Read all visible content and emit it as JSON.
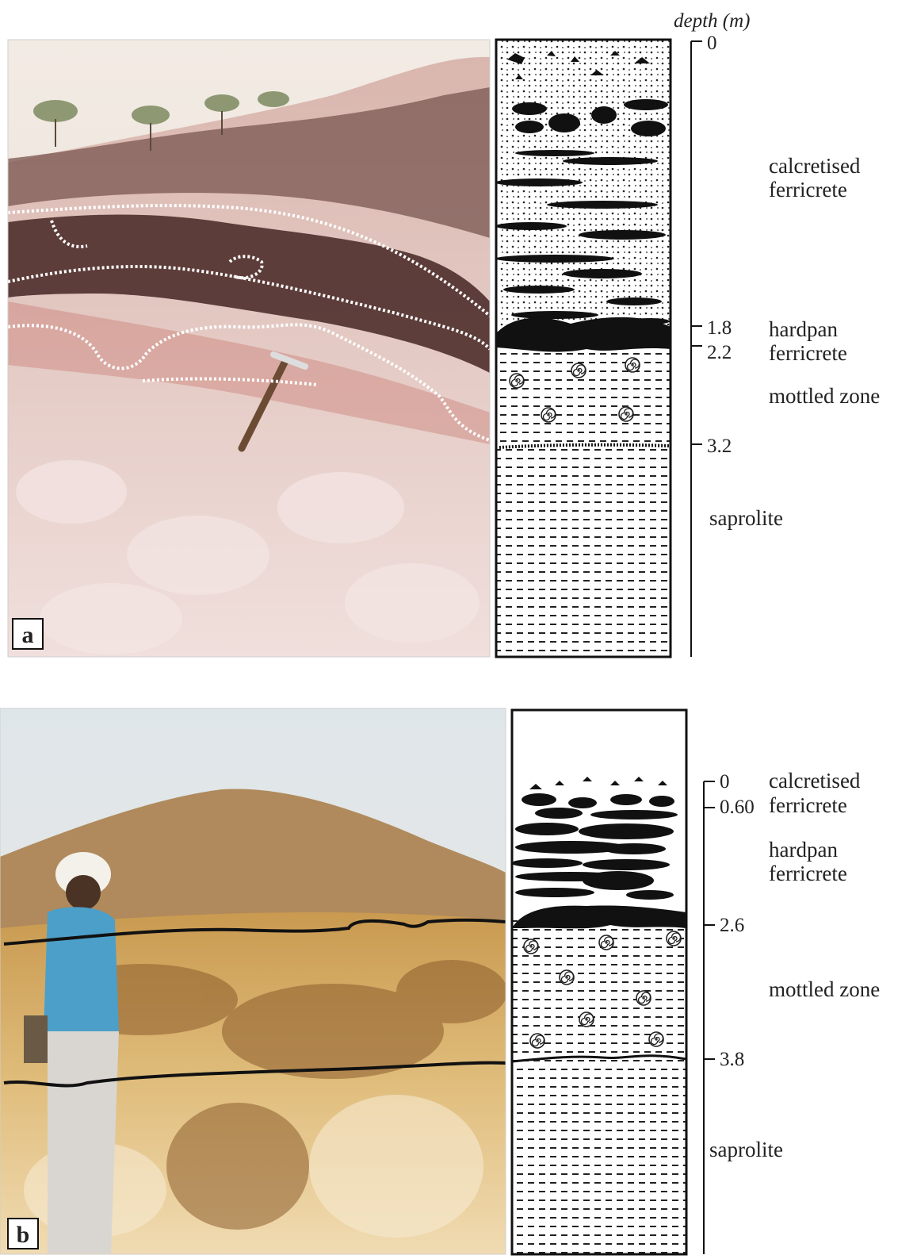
{
  "depth_axis_label": "depth (m)",
  "panels": [
    {
      "id": "a",
      "label": "a",
      "photo_content": "laterite outcrop with rock hammer",
      "depth_ticks": [
        "0",
        "1.8",
        "2.2",
        "3.2"
      ],
      "horizons": [
        {
          "name_lines": [
            "calcretised",
            "ferricrete"
          ],
          "pattern": "stippled-with-nodules"
        },
        {
          "name_lines": [
            "hardpan",
            "ferricrete"
          ],
          "pattern": "solid-black"
        },
        {
          "name_lines": [
            "mottled zone"
          ],
          "pattern": "dashed-with-spirals"
        },
        {
          "name_lines": [
            "saprolite"
          ],
          "pattern": "dashed"
        }
      ]
    },
    {
      "id": "b",
      "label": "b",
      "photo_content": "weathering profile with person standing",
      "depth_ticks": [
        "0",
        "0.60",
        "2.6",
        "3.8"
      ],
      "horizons": [
        {
          "name_lines": [
            "calcretised",
            "ferricrete"
          ],
          "pattern": "nodules"
        },
        {
          "name_lines": [
            "hardpan",
            "ferricrete"
          ],
          "pattern": "black-lenses"
        },
        {
          "name_lines": [
            "mottled zone"
          ],
          "pattern": "dashed-with-spirals"
        },
        {
          "name_lines": [
            "saprolite"
          ],
          "pattern": "dashed"
        }
      ]
    }
  ],
  "colors": {
    "outline": "#111111",
    "pattern_ink": "#1a1a1a",
    "photo_a_rock": "#e8c9c4",
    "photo_b_rock": "#d4a95f"
  }
}
